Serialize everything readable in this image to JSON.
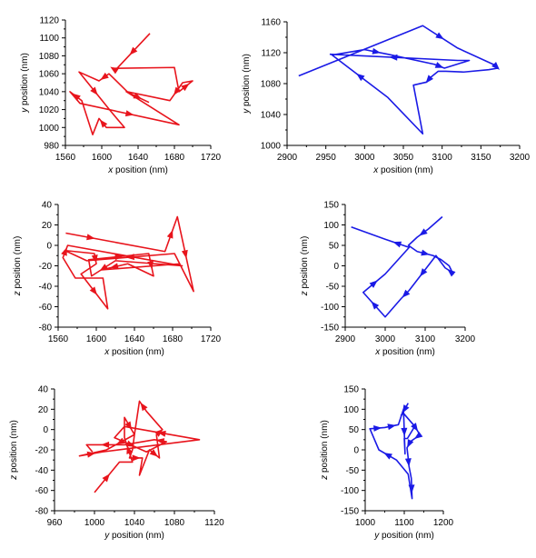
{
  "chart_data": [
    {
      "id": "xy-red",
      "type": "line",
      "xlabel": {
        "var": "x",
        "rest": " position (nm)"
      },
      "ylabel": {
        "var": "y",
        "rest": " position (nm)"
      },
      "xlim": [
        1560,
        1720
      ],
      "ylim": [
        980,
        1120
      ],
      "xticks": [
        1560,
        1600,
        1640,
        1680,
        1720
      ],
      "yticks": [
        980,
        1000,
        1020,
        1040,
        1060,
        1080,
        1100,
        1120
      ],
      "color": "#e8141c",
      "series": [
        {
          "points": [
            [
              1653,
              1105
            ],
            [
              1615,
              1064
            ],
            [
              1612,
              1066
            ],
            [
              1680,
              1067
            ],
            [
              1685,
              1040
            ],
            [
              1700,
              1052
            ],
            [
              1689,
              1050
            ],
            [
              1675,
              1030
            ],
            [
              1628,
              1040
            ],
            [
              1608,
              1060
            ],
            [
              1597,
              1052
            ],
            [
              1575,
              1062
            ],
            [
              1610,
              1018
            ],
            [
              1625,
              1000
            ],
            [
              1605,
              1000
            ],
            [
              1597,
              1010
            ],
            [
              1590,
              992
            ],
            [
              1578,
              1030
            ],
            [
              1565,
              1040
            ],
            [
              1576,
              1027
            ],
            [
              1685,
              1003
            ],
            [
              1627,
              1040
            ],
            [
              1652,
              1028
            ]
          ],
          "arrows": [
            1,
            2,
            5,
            7,
            10,
            12,
            15,
            18,
            20,
            22
          ]
        }
      ]
    },
    {
      "id": "xy-blue",
      "type": "line",
      "xlabel": {
        "var": "x",
        "rest": " position (nm)"
      },
      "ylabel": {
        "var": "y",
        "rest": " position (nm)"
      },
      "xlim": [
        2900,
        3200
      ],
      "ylim": [
        1000,
        1160
      ],
      "xticks": [
        2900,
        2950,
        3000,
        3050,
        3100,
        3150,
        3200
      ],
      "yticks": [
        1000,
        1040,
        1080,
        1120,
        1160
      ],
      "color": "#1a1ae6",
      "series": [
        {
          "points": [
            [
              2915,
              1090
            ],
            [
              3075,
              1155
            ],
            [
              3120,
              1126
            ],
            [
              3168,
              1104
            ],
            [
              3172,
              1100
            ],
            [
              3160,
              1098
            ],
            [
              3128,
              1095
            ],
            [
              3105,
              1096
            ],
            [
              3095,
              1096
            ],
            [
              3085,
              1088
            ],
            [
              3080,
              1082
            ],
            [
              3063,
              1078
            ],
            [
              3075,
              1015
            ],
            [
              3030,
              1062
            ],
            [
              2958,
              1117
            ],
            [
              3000,
              1124
            ],
            [
              3030,
              1118
            ],
            [
              3090,
              1105
            ],
            [
              3103,
              1100
            ],
            [
              3135,
              1110
            ],
            [
              3120,
              1110
            ],
            [
              2955,
              1118
            ]
          ],
          "arrows": [
            2,
            4,
            10,
            16,
            14,
            18,
            21
          ]
        }
      ]
    },
    {
      "id": "xz-red",
      "type": "line",
      "xlabel": {
        "var": "x",
        "rest": " position (nm)"
      },
      "ylabel": {
        "var": "z",
        "rest": " position (nm)"
      },
      "xlim": [
        1560,
        1720
      ],
      "ylim": [
        -80,
        40
      ],
      "xticks": [
        1560,
        1600,
        1640,
        1680,
        1720
      ],
      "yticks": [
        -80,
        -60,
        -40,
        -20,
        0,
        20,
        40
      ],
      "color": "#e8141c",
      "series": [
        {
          "points": [
            [
              1568,
              12
            ],
            [
              1620,
              3
            ],
            [
              1672,
              -6
            ],
            [
              1685,
              28
            ],
            [
              1702,
              -45
            ],
            [
              1682,
              -8
            ],
            [
              1590,
              -15
            ],
            [
              1567,
              -5
            ],
            [
              1598,
              -8
            ],
            [
              1600,
              -18
            ],
            [
              1584,
              -28
            ],
            [
              1612,
              -62
            ],
            [
              1607,
              -32
            ],
            [
              1578,
              -32
            ],
            [
              1565,
              -12
            ],
            [
              1570,
              0
            ],
            [
              1690,
              -20
            ],
            [
              1620,
              -15
            ],
            [
              1595,
              -30
            ],
            [
              1592,
              -14
            ],
            [
              1655,
              -8
            ],
            [
              1660,
              -30
            ],
            [
              1633,
              -18
            ],
            [
              1605,
              -24
            ],
            [
              1688,
              -18
            ]
          ],
          "arrows": [
            1,
            3,
            4,
            6,
            9,
            11,
            15,
            18,
            20,
            21,
            23
          ]
        }
      ]
    },
    {
      "id": "xz-blue",
      "type": "line",
      "xlabel": {
        "var": "x",
        "rest": " position (nm)"
      },
      "ylabel": {
        "var": "z",
        "rest": " position (nm)"
      },
      "xlim": [
        2900,
        3200
      ],
      "ylim": [
        -150,
        150
      ],
      "xticks": [
        2900,
        3000,
        3100,
        3200
      ],
      "yticks": [
        -150,
        -100,
        -50,
        0,
        50,
        100,
        150
      ],
      "color": "#1a1ae6",
      "series": [
        {
          "points": [
            [
              3143,
              120
            ],
            [
              3108,
              90
            ],
            [
              3080,
              70
            ],
            [
              3058,
              50
            ],
            [
              3080,
              35
            ],
            [
              3120,
              25
            ],
            [
              3140,
              15
            ],
            [
              3160,
              0
            ],
            [
              3170,
              -20
            ],
            [
              3158,
              -10
            ],
            [
              3150,
              -5
            ],
            [
              3127,
              25
            ],
            [
              3060,
              -60
            ],
            [
              3040,
              -80
            ],
            [
              3000,
              -125
            ],
            [
              2945,
              -65
            ],
            [
              3000,
              -20
            ],
            [
              3060,
              45
            ],
            [
              3000,
              65
            ],
            [
              2915,
              95
            ]
          ],
          "arrows": [
            2,
            5,
            9,
            12,
            13,
            15,
            16,
            18
          ]
        }
      ]
    },
    {
      "id": "yz-red",
      "type": "line",
      "xlabel": {
        "var": "y",
        "rest": " position (nm)"
      },
      "ylabel": {
        "var": "z",
        "rest": " position (nm)"
      },
      "xlim": [
        960,
        1120
      ],
      "ylim": [
        -80,
        40
      ],
      "xticks": [
        960,
        1000,
        1040,
        1080,
        1120
      ],
      "yticks": [
        -80,
        -60,
        -40,
        -20,
        0,
        20,
        40
      ],
      "color": "#e8141c",
      "series": [
        {
          "points": [
            [
              1000,
              -62
            ],
            [
              1025,
              -32
            ],
            [
              1038,
              -32
            ],
            [
              1030,
              -8
            ],
            [
              1030,
              12
            ],
            [
              1040,
              -5
            ],
            [
              1038,
              -20
            ],
            [
              1035,
              -28
            ],
            [
              1048,
              -28
            ],
            [
              1045,
              -45
            ],
            [
              1055,
              -20
            ],
            [
              1065,
              -28
            ],
            [
              1062,
              -5
            ],
            [
              1068,
              0
            ],
            [
              1052,
              18
            ],
            [
              1045,
              28
            ],
            [
              1040,
              -5
            ],
            [
              1012,
              -20
            ],
            [
              985,
              -26
            ],
            [
              1008,
              -22
            ],
            [
              1105,
              -10
            ],
            [
              1030,
              3
            ],
            [
              1020,
              -8
            ],
            [
              1052,
              -22
            ],
            [
              1072,
              -12
            ],
            [
              1060,
              -10
            ],
            [
              1030,
              -15
            ],
            [
              992,
              -15
            ],
            [
              998,
              -22
            ]
          ],
          "arrows": [
            1,
            3,
            5,
            8,
            11,
            13,
            15,
            17,
            19,
            21,
            23,
            25,
            27
          ]
        }
      ]
    },
    {
      "id": "yz-blue",
      "type": "line",
      "xlabel": {
        "var": "y",
        "rest": " position (nm)"
      },
      "ylabel": {
        "var": "z",
        "rest": " position (nm)"
      },
      "xlim": [
        1000,
        1200
      ],
      "ylim": [
        -150,
        150
      ],
      "xticks": [
        1000,
        1100,
        1200
      ],
      "yticks": [
        -150,
        -100,
        -50,
        0,
        50,
        100,
        150
      ],
      "color": "#1a1ae6",
      "series": [
        {
          "points": [
            [
              1110,
              115
            ],
            [
              1092,
              85
            ],
            [
              1098,
              90
            ],
            [
              1125,
              60
            ],
            [
              1132,
              50
            ],
            [
              1140,
              37
            ],
            [
              1130,
              30
            ],
            [
              1115,
              20
            ],
            [
              1110,
              10
            ],
            [
              1107,
              5
            ],
            [
              1110,
              -20
            ],
            [
              1112,
              -40
            ],
            [
              1118,
              -70
            ],
            [
              1120,
              -120
            ],
            [
              1110,
              -60
            ],
            [
              1080,
              -25
            ],
            [
              1035,
              0
            ],
            [
              1012,
              52
            ],
            [
              1050,
              55
            ],
            [
              1085,
              62
            ],
            [
              1098,
              100
            ],
            [
              1102,
              -10
            ],
            [
              1100,
              28
            ],
            [
              1108,
              28
            ],
            [
              1125,
              55
            ]
          ],
          "arrows": [
            1,
            4,
            6,
            8,
            11,
            13,
            16,
            18,
            19,
            21
          ]
        }
      ]
    }
  ]
}
